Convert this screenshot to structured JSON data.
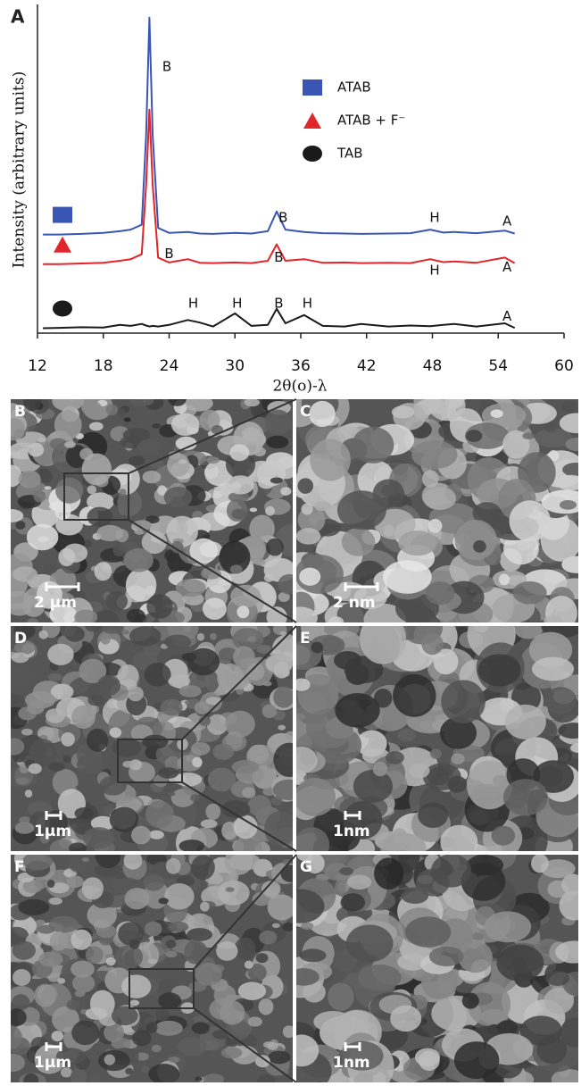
{
  "chart_data": {
    "type": "line",
    "panel_label": "A",
    "xlabel": "2θ(ο)-λ",
    "ylabel": "Intensity (arbitrary units)",
    "x": [
      12.5,
      14,
      16,
      18,
      19.5,
      20.5,
      21.5,
      21.9,
      22.2,
      22.5,
      23,
      24,
      25.7,
      26.8,
      28,
      30,
      31.5,
      33,
      33.8,
      34.6,
      36.3,
      38,
      40,
      41.5,
      44,
      46,
      47.8,
      49,
      50,
      52,
      54.6,
      55.5
    ],
    "series": [
      {
        "name": "ATAB",
        "color": "#3a55b4",
        "marker": "square",
        "values": [
          30,
          30,
          30.2,
          30.5,
          31,
          31.5,
          33,
          60,
          96,
          60,
          32,
          30.5,
          30.8,
          30.3,
          30.2,
          30.5,
          30.3,
          31,
          37,
          31.5,
          30.8,
          30.4,
          30.3,
          30.2,
          30.3,
          30.4,
          31.5,
          30.6,
          30.8,
          30.4,
          31.2,
          30.3
        ]
      },
      {
        "name": "ATAB + F⁻",
        "color": "#e0262b",
        "marker": "triangle",
        "values": [
          21,
          21,
          21.2,
          21.4,
          22,
          22.5,
          24,
          45,
          68,
          45,
          23,
          21.5,
          22.5,
          21.4,
          21.3,
          21.5,
          21.3,
          22,
          27,
          22,
          22.5,
          21.4,
          21.5,
          21.3,
          21.4,
          21.3,
          22.5,
          21.6,
          21.8,
          21.4,
          23,
          21.3
        ]
      },
      {
        "name": "TAB",
        "color": "#1a1a1a",
        "marker": "circle",
        "values": [
          1.5,
          1.6,
          1.8,
          1.7,
          2.5,
          2.2,
          2.8,
          2.3,
          2,
          2.2,
          2,
          2.5,
          4,
          3.2,
          2,
          6,
          2.2,
          2.5,
          7.4,
          3,
          5.5,
          2.2,
          2,
          2.8,
          2,
          2.3,
          2.1,
          2.5,
          2.8,
          2,
          3,
          1.6
        ]
      }
    ],
    "annotations": [
      {
        "text": "B",
        "x": 23.8,
        "y": 81
      },
      {
        "text": "B",
        "x": 34.4,
        "y": 35
      },
      {
        "text": "H",
        "x": 48.2,
        "y": 35
      },
      {
        "text": "A",
        "x": 54.8,
        "y": 34
      },
      {
        "text": "B",
        "x": 24,
        "y": 24
      },
      {
        "text": "B",
        "x": 34,
        "y": 23
      },
      {
        "text": "H",
        "x": 48.2,
        "y": 19
      },
      {
        "text": "A",
        "x": 54.8,
        "y": 20
      },
      {
        "text": "H",
        "x": 26.2,
        "y": 9
      },
      {
        "text": "H",
        "x": 30.2,
        "y": 9
      },
      {
        "text": "B",
        "x": 34,
        "y": 9
      },
      {
        "text": "H",
        "x": 36.6,
        "y": 9
      },
      {
        "text": "A",
        "x": 54.8,
        "y": 5
      }
    ],
    "xlim": [
      12,
      60
    ],
    "xticks": [
      12,
      18,
      24,
      30,
      36,
      42,
      48,
      54,
      60
    ],
    "ylim": [
      0,
      100
    ]
  },
  "panels": [
    {
      "label": "B",
      "scale_bar": "2 μm"
    },
    {
      "label": "C",
      "scale_bar": "2 nm"
    },
    {
      "label": "D",
      "scale_bar": "1μm"
    },
    {
      "label": "E",
      "scale_bar": "1nm"
    },
    {
      "label": "F",
      "scale_bar": "1μm"
    },
    {
      "label": "G",
      "scale_bar": "1nm"
    }
  ]
}
